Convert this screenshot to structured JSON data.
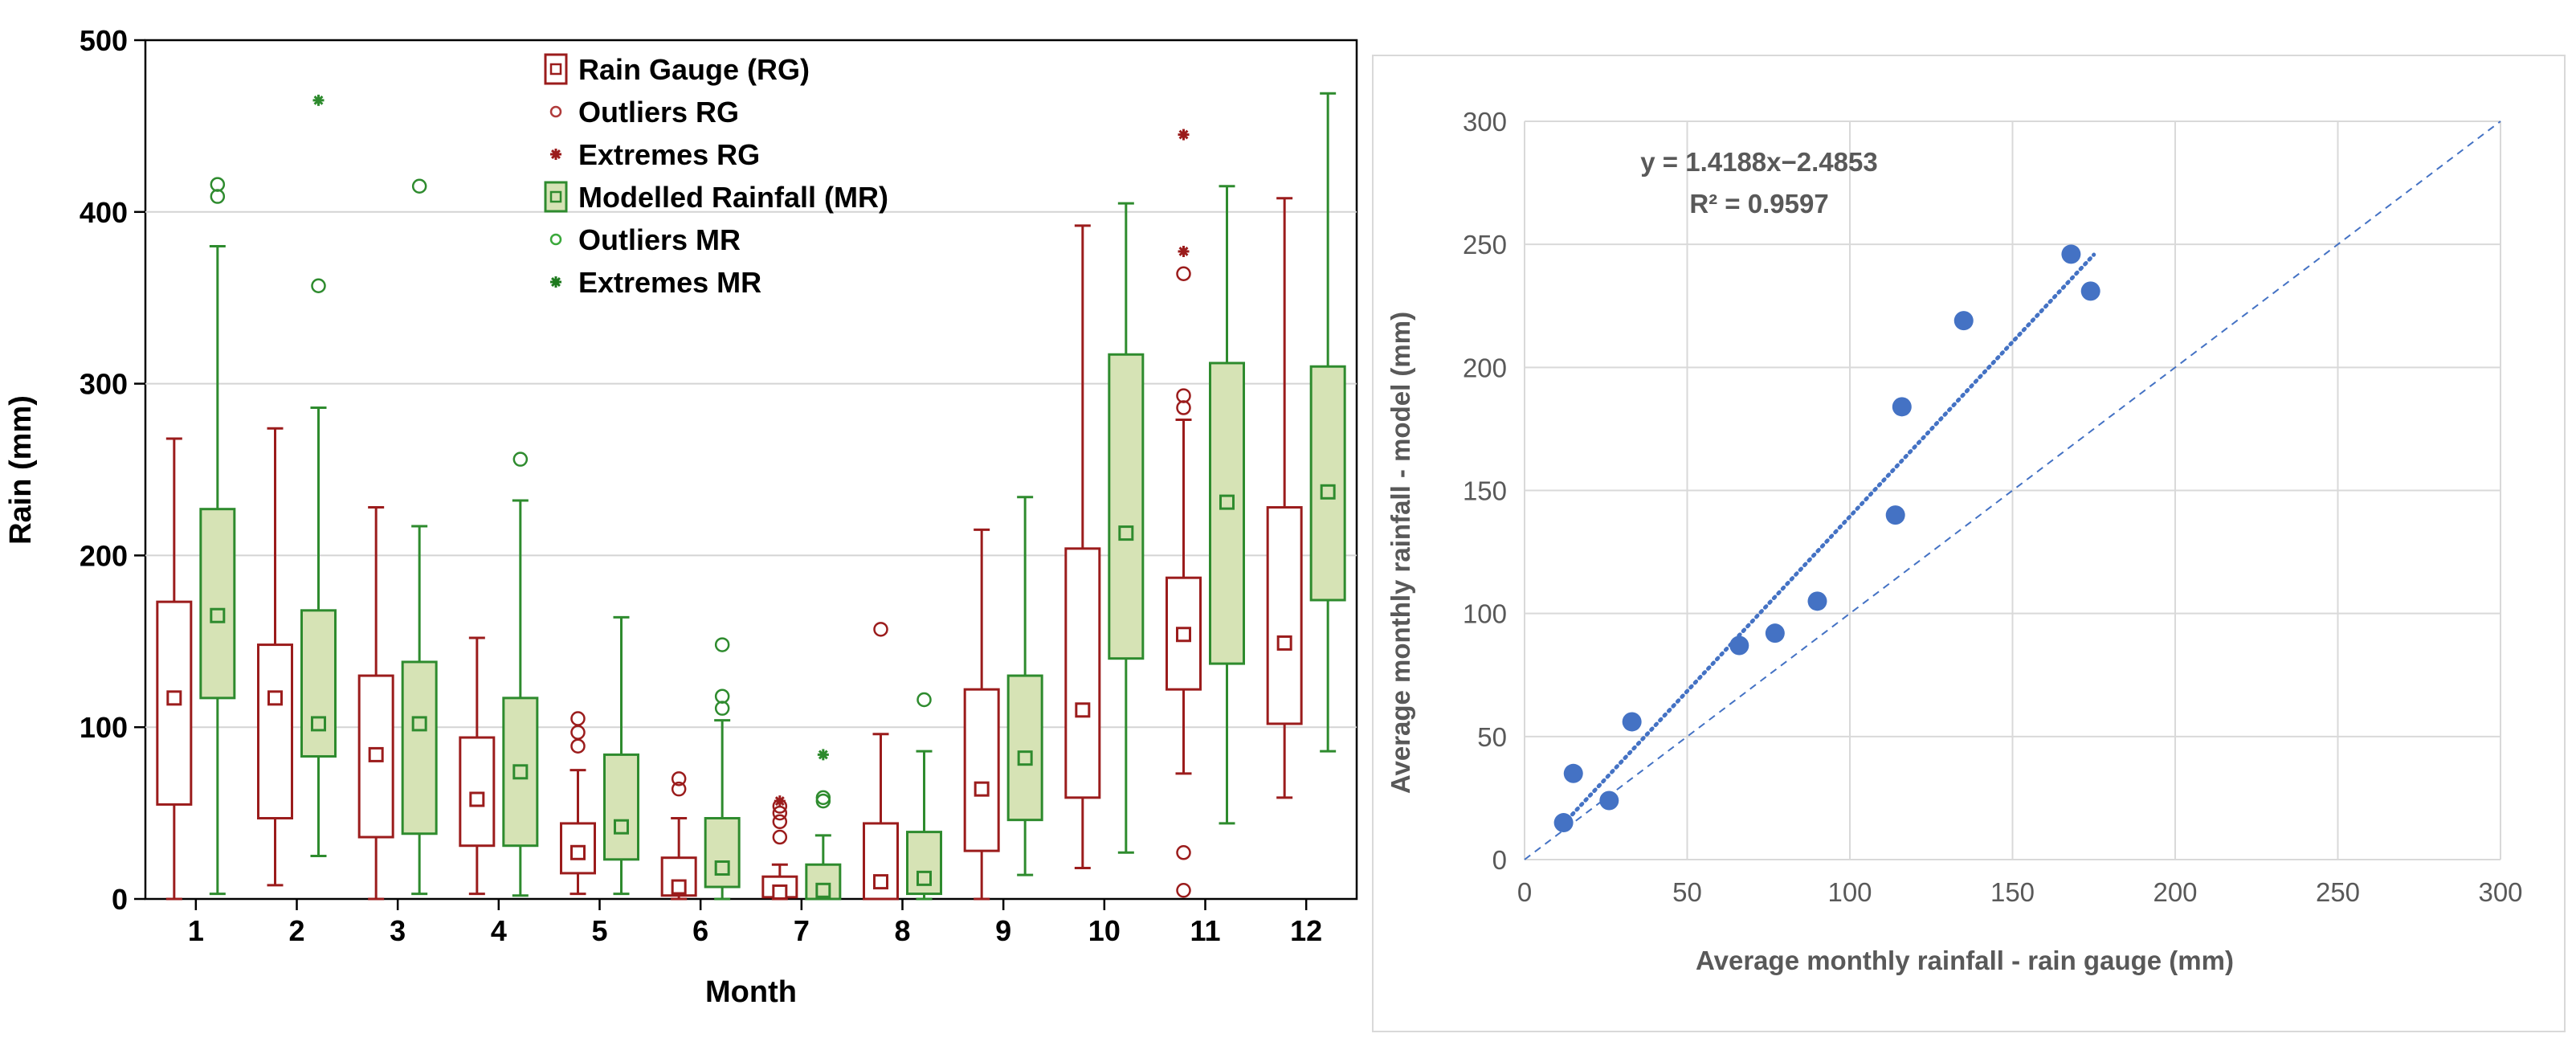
{
  "chart_data": [
    {
      "type": "box",
      "xlabel": "Month",
      "ylabel": "Rain (mm)",
      "ylim": [
        0,
        500
      ],
      "yticks": [
        0,
        100,
        200,
        300,
        400,
        500
      ],
      "categories": [
        "1",
        "2",
        "3",
        "4",
        "5",
        "6",
        "7",
        "8",
        "9",
        "10",
        "11",
        "12"
      ],
      "grid": true,
      "legend_position": "top-center",
      "legend": [
        {
          "label": "Rain Gauge (RG)",
          "symbol": "box",
          "color": "#9b1c1c"
        },
        {
          "label": "Outliers RG",
          "symbol": "circle",
          "color": "#b03a3a"
        },
        {
          "label": "Extremes RG",
          "symbol": "star",
          "color": "#9b1c1c"
        },
        {
          "label": "Modelled Rainfall (MR)",
          "symbol": "box",
          "color": "#2e8b2e"
        },
        {
          "label": "Outliers MR",
          "symbol": "circle",
          "color": "#3aa83a"
        },
        {
          "label": "Extremes MR",
          "symbol": "star",
          "color": "#1e7a1e"
        }
      ],
      "series": [
        {
          "name": "Rain Gauge (RG)",
          "color": "#9b1c1c",
          "fill": "#ffffff",
          "boxes": [
            {
              "min": 0,
              "q1": 55,
              "median": 117,
              "q3": 173,
              "max": 268,
              "outliers": [],
              "extremes": []
            },
            {
              "min": 8,
              "q1": 47,
              "median": 117,
              "q3": 148,
              "max": 274,
              "outliers": [],
              "extremes": []
            },
            {
              "min": 0,
              "q1": 36,
              "median": 84,
              "q3": 130,
              "max": 228,
              "outliers": [],
              "extremes": []
            },
            {
              "min": 3,
              "q1": 31,
              "median": 58,
              "q3": 94,
              "max": 152,
              "outliers": [],
              "extremes": []
            },
            {
              "min": 3,
              "q1": 15,
              "median": 27,
              "q3": 44,
              "max": 75,
              "outliers": [
                89,
                97,
                105
              ],
              "extremes": []
            },
            {
              "min": 0,
              "q1": 2,
              "median": 7,
              "q3": 24,
              "max": 47,
              "outliers": [
                64,
                70
              ],
              "extremes": []
            },
            {
              "min": 0,
              "q1": 1,
              "median": 4,
              "q3": 13,
              "max": 20,
              "outliers": [
                36,
                45,
                50,
                54
              ],
              "extremes": [
                57
              ]
            },
            {
              "min": 0,
              "q1": 0,
              "median": 10,
              "q3": 44,
              "max": 96,
              "outliers": [
                157
              ],
              "extremes": []
            },
            {
              "min": 0,
              "q1": 28,
              "median": 64,
              "q3": 122,
              "max": 215,
              "outliers": [],
              "extremes": []
            },
            {
              "min": 18,
              "q1": 59,
              "median": 110,
              "q3": 204,
              "max": 392,
              "outliers": [],
              "extremes": []
            },
            {
              "min": 73,
              "q1": 122,
              "median": 154,
              "q3": 187,
              "max": 279,
              "outliers": [
                5,
                27,
                286,
                293,
                364
              ],
              "extremes": [
                377,
                445
              ]
            },
            {
              "min": 59,
              "q1": 102,
              "median": 149,
              "q3": 228,
              "max": 408,
              "outliers": [],
              "extremes": []
            }
          ]
        },
        {
          "name": "Modelled Rainfall (MR)",
          "color": "#2e8b2e",
          "fill": "#d6e3b5",
          "boxes": [
            {
              "min": 3,
              "q1": 117,
              "median": 165,
              "q3": 227,
              "max": 380,
              "outliers": [
                409,
                416
              ],
              "extremes": []
            },
            {
              "min": 25,
              "q1": 83,
              "median": 102,
              "q3": 168,
              "max": 286,
              "outliers": [
                357
              ],
              "extremes": [
                465
              ]
            },
            {
              "min": 3,
              "q1": 38,
              "median": 102,
              "q3": 138,
              "max": 217,
              "outliers": [
                415
              ],
              "extremes": []
            },
            {
              "min": 2,
              "q1": 31,
              "median": 74,
              "q3": 117,
              "max": 232,
              "outliers": [
                256
              ],
              "extremes": []
            },
            {
              "min": 3,
              "q1": 23,
              "median": 42,
              "q3": 84,
              "max": 164,
              "outliers": [],
              "extremes": []
            },
            {
              "min": 0,
              "q1": 7,
              "median": 18,
              "q3": 47,
              "max": 104,
              "outliers": [
                111,
                118,
                148
              ],
              "extremes": []
            },
            {
              "min": 0,
              "q1": 0,
              "median": 5,
              "q3": 20,
              "max": 37,
              "outliers": [
                57,
                59
              ],
              "extremes": [
                84
              ]
            },
            {
              "min": 0,
              "q1": 3,
              "median": 12,
              "q3": 39,
              "max": 86,
              "outliers": [
                116
              ],
              "extremes": []
            },
            {
              "min": 14,
              "q1": 46,
              "median": 82,
              "q3": 130,
              "max": 234,
              "outliers": [],
              "extremes": []
            },
            {
              "min": 27,
              "q1": 140,
              "median": 213,
              "q3": 317,
              "max": 405,
              "outliers": [],
              "extremes": []
            },
            {
              "min": 44,
              "q1": 137,
              "median": 231,
              "q3": 312,
              "max": 415,
              "outliers": [],
              "extremes": []
            },
            {
              "min": 86,
              "q1": 174,
              "median": 237,
              "q3": 310,
              "max": 469,
              "outliers": [],
              "extremes": []
            }
          ]
        }
      ]
    },
    {
      "type": "scatter",
      "xlabel": "Average monthly rainfall - rain gauge (mm)",
      "ylabel": "Average monthly rainfall - model (mm)",
      "xlim": [
        0,
        300
      ],
      "ylim": [
        0,
        300
      ],
      "xticks": [
        0,
        50,
        100,
        150,
        200,
        250,
        300
      ],
      "yticks": [
        0,
        50,
        100,
        150,
        200,
        250,
        300
      ],
      "grid": true,
      "point_color": "#4472c4",
      "equation": "y = 1.4188x−2.4853",
      "r_squared": "R² = 0.9597",
      "trendline": {
        "slope": 1.4188,
        "intercept": -2.4853,
        "x_range": [
          12,
          175
        ]
      },
      "reference_line": {
        "slope": 1,
        "intercept": 0,
        "x_range": [
          0,
          300
        ]
      },
      "x": [
        12,
        15,
        26,
        33,
        66,
        77,
        90,
        114,
        116,
        135,
        168,
        174
      ],
      "y": [
        15,
        35,
        24,
        56,
        87,
        92,
        105,
        140,
        184,
        219,
        246,
        231
      ]
    }
  ]
}
